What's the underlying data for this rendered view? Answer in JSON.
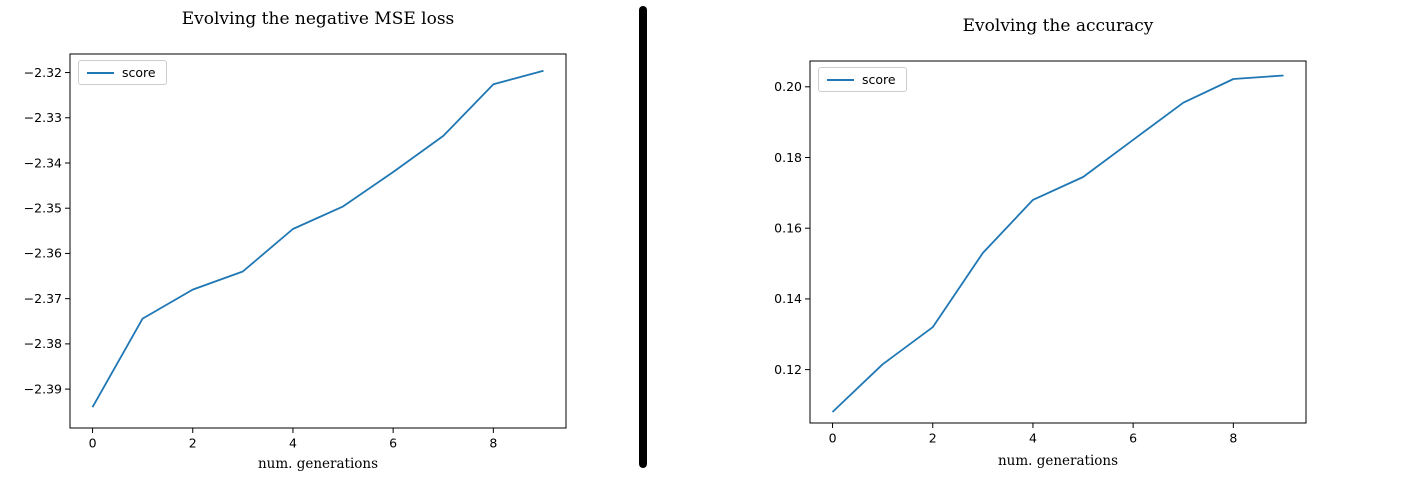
{
  "figure": {
    "background": "#ffffff",
    "divider_color": "#000000"
  },
  "chart_data": [
    {
      "type": "line",
      "title": "Evolving the negative MSE loss",
      "xlabel": "num. generations",
      "ylabel": "",
      "legend": [
        "score"
      ],
      "legend_position": "upper left",
      "grid": false,
      "line_color": "#1f77b4",
      "series": [
        {
          "name": "score",
          "x": [
            0,
            1,
            2,
            3,
            4,
            5,
            6,
            7,
            8,
            9
          ],
          "y": [
            -2.394,
            -2.3744,
            -2.368,
            -2.364,
            -2.3546,
            -2.3496,
            -2.342,
            -2.334,
            -2.3226,
            -2.3196
          ]
        }
      ],
      "xlim": [
        -0.45,
        9.45
      ],
      "ylim": [
        -2.3986,
        -2.3159
      ],
      "xticks": [
        0,
        2,
        4,
        6,
        8
      ],
      "xtick_labels": [
        "0",
        "2",
        "4",
        "6",
        "8"
      ],
      "yticks": [
        -2.32,
        -2.33,
        -2.34,
        -2.35,
        -2.36,
        -2.37,
        -2.38,
        -2.39
      ],
      "ytick_labels": [
        "−2.32",
        "−2.33",
        "−2.34",
        "−2.35",
        "−2.36",
        "−2.37",
        "−2.38",
        "−2.39"
      ]
    },
    {
      "type": "line",
      "title": "Evolving the accuracy",
      "xlabel": "num. generations",
      "ylabel": "",
      "legend": [
        "score"
      ],
      "legend_position": "upper left",
      "grid": false,
      "line_color": "#1f77b4",
      "series": [
        {
          "name": "score",
          "x": [
            0,
            1,
            2,
            3,
            4,
            5,
            6,
            7,
            8,
            9
          ],
          "y": [
            0.108,
            0.1215,
            0.132,
            0.153,
            0.168,
            0.1745,
            0.185,
            0.1955,
            0.2022,
            0.2032
          ]
        }
      ],
      "xlim": [
        -0.45,
        9.45
      ],
      "ylim": [
        0.1049,
        0.2073
      ],
      "xticks": [
        0,
        2,
        4,
        6,
        8
      ],
      "xtick_labels": [
        "0",
        "2",
        "4",
        "6",
        "8"
      ],
      "yticks": [
        0.2,
        0.18,
        0.16,
        0.14,
        0.12
      ],
      "ytick_labels": [
        "0.20",
        "0.18",
        "0.16",
        "0.14",
        "0.12"
      ]
    }
  ]
}
